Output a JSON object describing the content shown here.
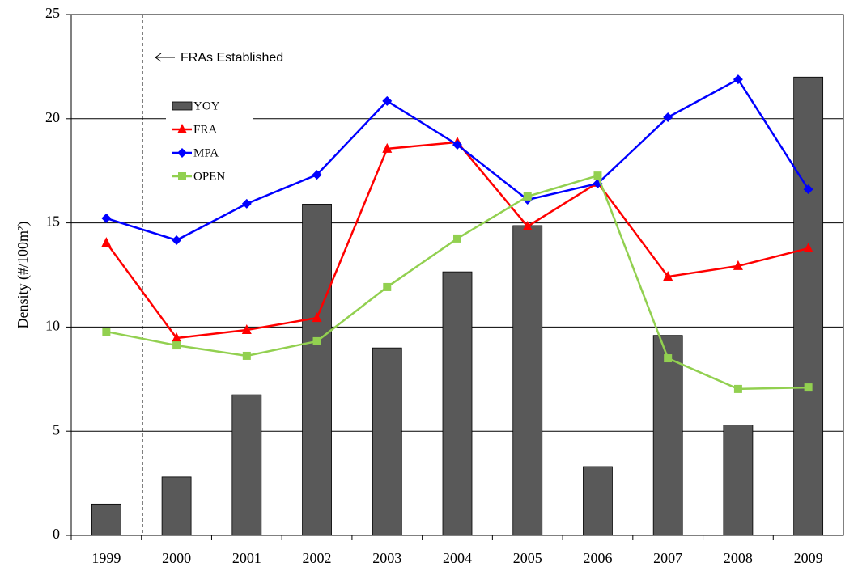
{
  "chart_data": {
    "type": "bar-line",
    "y_label": "Density (#/100m²)",
    "annotation": "FRAs Established",
    "categories": [
      "1999",
      "2000",
      "2001",
      "2002",
      "2003",
      "2004",
      "2005",
      "2006",
      "2007",
      "2008",
      "2009"
    ],
    "series": [
      {
        "name": "YOY",
        "type": "bar",
        "color": "#595959",
        "values": [
          1.5,
          2.8,
          6.75,
          15.9,
          9.0,
          12.65,
          14.87,
          3.3,
          9.6,
          5.3,
          22.0
        ]
      },
      {
        "name": "FRA",
        "type": "line",
        "marker": "triangle",
        "color": "#ff0000",
        "values": [
          14.05,
          9.47,
          9.86,
          10.44,
          18.56,
          18.87,
          14.83,
          16.93,
          12.42,
          12.93,
          13.78
        ]
      },
      {
        "name": "MPA",
        "type": "line",
        "marker": "diamond",
        "color": "#0000ff",
        "values": [
          15.22,
          14.17,
          15.92,
          17.31,
          20.85,
          18.75,
          16.11,
          16.89,
          20.07,
          21.89,
          16.61
        ]
      },
      {
        "name": "OPEN",
        "type": "line",
        "marker": "square",
        "color": "#92d050",
        "values": [
          9.78,
          9.12,
          8.62,
          9.32,
          11.92,
          14.25,
          16.27,
          17.27,
          8.5,
          7.03,
          7.1
        ]
      }
    ],
    "ylim": [
      0,
      25
    ],
    "yticks": [
      0,
      5,
      10,
      15,
      20,
      25
    ],
    "grid": true
  }
}
